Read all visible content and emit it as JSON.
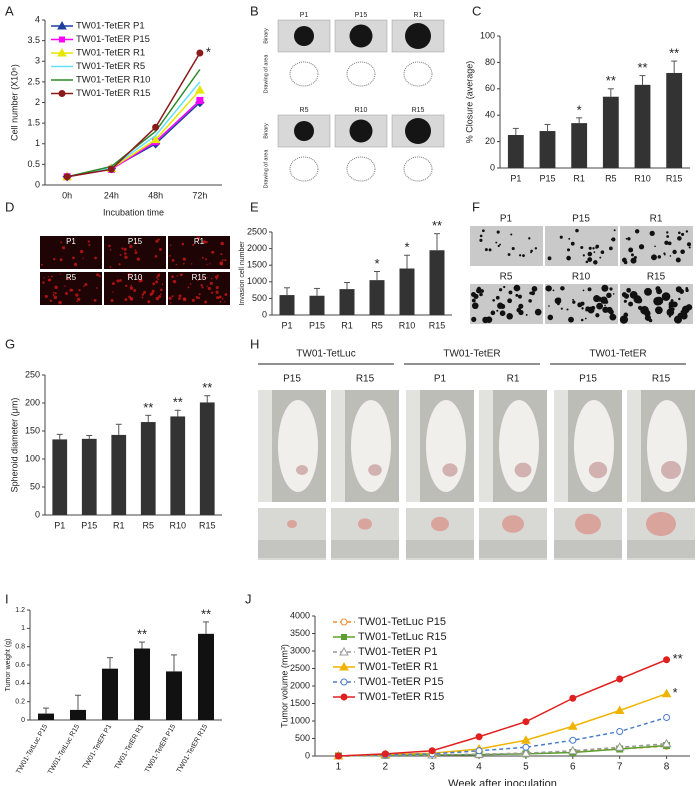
{
  "chart_data": [
    {
      "panel": "A",
      "type": "line",
      "y_label": "Cell number (X10⁶)",
      "x_label": "Incubation time",
      "categories": [
        "0h",
        "24h",
        "48h",
        "72h"
      ],
      "ylim": [
        0,
        4
      ],
      "yticks": [
        0,
        0.5,
        1,
        1.5,
        2,
        2.5,
        3,
        3.5,
        4
      ],
      "legend": "upper left",
      "series": [
        {
          "name": "TW01-TetER P1",
          "color": "#1f3fa0",
          "marker": "diamond",
          "open": false,
          "dash": false,
          "values": [
            0.2,
            0.4,
            1.0,
            2.0
          ]
        },
        {
          "name": "TW01-TetER P15",
          "color": "#ff00ff",
          "marker": "square",
          "open": false,
          "dash": false,
          "values": [
            0.2,
            0.38,
            1.05,
            2.05
          ]
        },
        {
          "name": "TW01-TetER R1",
          "color": "#e6e600",
          "marker": "triangle",
          "open": false,
          "dash": false,
          "values": [
            0.2,
            0.4,
            1.1,
            2.3
          ]
        },
        {
          "name": "TW01-TetER R5",
          "color": "#66e0ff",
          "marker": "none",
          "open": false,
          "dash": false,
          "values": [
            0.2,
            0.42,
            1.2,
            2.5
          ]
        },
        {
          "name": "TW01-TetER R10",
          "color": "#2a8a2a",
          "marker": "none",
          "open": false,
          "dash": false,
          "values": [
            0.2,
            0.45,
            1.3,
            2.8
          ]
        },
        {
          "name": "TW01-TetER R15",
          "color": "#8b1a1a",
          "marker": "circle",
          "open": false,
          "dash": false,
          "values": [
            0.2,
            0.38,
            1.4,
            3.2
          ]
        }
      ],
      "annotations": [
        {
          "series": 5,
          "index": 3,
          "text": "*"
        }
      ]
    },
    {
      "panel": "C",
      "type": "bar",
      "y_label": "% Closure (average)",
      "color": "#333333",
      "categories": [
        "P1",
        "P15",
        "R1",
        "R5",
        "R10",
        "R15"
      ],
      "values": [
        25,
        28,
        34,
        54,
        63,
        72
      ],
      "errors": [
        5,
        5,
        4,
        6,
        7,
        9
      ],
      "ylim": [
        0,
        100
      ],
      "yticks": [
        0,
        20,
        40,
        60,
        80,
        100
      ],
      "annotations": [
        {
          "index": 2,
          "text": "*"
        },
        {
          "index": 3,
          "text": "**"
        },
        {
          "index": 4,
          "text": "**"
        },
        {
          "index": 5,
          "text": "**"
        }
      ]
    },
    {
      "panel": "E",
      "type": "bar",
      "y_label": "Invasion cell number",
      "color": "#333333",
      "categories": [
        "P1",
        "P15",
        "R1",
        "R5",
        "R10",
        "R15"
      ],
      "values": [
        600,
        580,
        780,
        1050,
        1400,
        1950
      ],
      "errors": [
        220,
        220,
        200,
        260,
        400,
        500
      ],
      "ylim": [
        0,
        2500
      ],
      "yticks": [
        0,
        500,
        1000,
        1500,
        2000,
        2500
      ],
      "annotations": [
        {
          "index": 3,
          "text": "*"
        },
        {
          "index": 4,
          "text": "*"
        },
        {
          "index": 5,
          "text": "**"
        }
      ]
    },
    {
      "panel": "G",
      "type": "bar",
      "y_label": "Spheroid diameter (μm)",
      "color": "#333333",
      "categories": [
        "P1",
        "P15",
        "R1",
        "R5",
        "R10",
        "R15"
      ],
      "values": [
        135,
        136,
        143,
        166,
        176,
        201
      ],
      "errors": [
        9,
        6,
        19,
        12,
        11,
        12
      ],
      "ylim": [
        0,
        250
      ],
      "yticks": [
        0,
        50,
        100,
        150,
        200,
        250
      ],
      "annotations": [
        {
          "index": 3,
          "text": "**"
        },
        {
          "index": 4,
          "text": "**"
        },
        {
          "index": 5,
          "text": "**"
        }
      ]
    },
    {
      "panel": "I",
      "type": "bar",
      "y_label": "Tumor weight (g)",
      "color": "#111111",
      "categories": [
        "TW01-TetLuc P15",
        "TW01-TetLuc R15",
        "TW01-TetER P1",
        "TW01-TetER R1",
        "TW01-TetER P15",
        "TW01-TetER R15"
      ],
      "values": [
        0.07,
        0.11,
        0.56,
        0.78,
        0.53,
        0.94
      ],
      "errors": [
        0.06,
        0.16,
        0.12,
        0.07,
        0.18,
        0.13
      ],
      "ylim": [
        0,
        1.2
      ],
      "yticks": [
        0,
        0.2,
        0.4,
        0.6,
        0.8,
        1,
        1.2
      ],
      "annotations": [
        {
          "index": 3,
          "text": "**"
        },
        {
          "index": 5,
          "text": "**"
        }
      ]
    },
    {
      "panel": "J",
      "type": "line",
      "y_label": "Tumor volume (mm³)",
      "x_label": "Week after inoculation",
      "x": [
        1,
        2,
        3,
        4,
        5,
        6,
        7,
        8
      ],
      "xlim": [
        0.5,
        8.5
      ],
      "xticks": [
        1,
        2,
        3,
        4,
        5,
        6,
        7,
        8
      ],
      "ylim": [
        0,
        4000
      ],
      "yticks": [
        0,
        500,
        1000,
        1500,
        2000,
        2500,
        3000,
        3500,
        4000
      ],
      "legend": "upper left",
      "series": [
        {
          "name": "TW01-TetLuc P15",
          "color": "#f08a30",
          "marker": "circle",
          "open": true,
          "dash": true,
          "values": [
            0,
            20,
            30,
            50,
            80,
            120,
            200,
            280
          ]
        },
        {
          "name": "TW01-TetLuc R15",
          "color": "#5aa02c",
          "marker": "square",
          "open": false,
          "dash": false,
          "values": [
            0,
            20,
            30,
            40,
            60,
            100,
            200,
            300
          ]
        },
        {
          "name": "TW01-TetER P1",
          "color": "#999999",
          "marker": "triangle",
          "open": true,
          "dash": true,
          "values": [
            0,
            20,
            30,
            50,
            80,
            150,
            250,
            350
          ]
        },
        {
          "name": "TW01-TetER R1",
          "color": "#f0b400",
          "marker": "triangle",
          "open": false,
          "dash": false,
          "values": [
            0,
            40,
            80,
            200,
            450,
            850,
            1300,
            1780
          ]
        },
        {
          "name": "TW01-TetER P15",
          "color": "#4a7cc8",
          "marker": "circle",
          "open": true,
          "dash": true,
          "values": [
            0,
            30,
            60,
            150,
            250,
            450,
            700,
            1100
          ]
        },
        {
          "name": "TW01-TetER R15",
          "color": "#e02020",
          "marker": "circle",
          "open": false,
          "dash": false,
          "values": [
            0,
            60,
            150,
            550,
            980,
            1650,
            2200,
            2750
          ]
        }
      ],
      "annotations": [
        {
          "series": 5,
          "index": 7,
          "text": "**"
        },
        {
          "series": 3,
          "index": 7,
          "text": "*"
        }
      ]
    }
  ],
  "image_panels": [
    {
      "panel": "B",
      "labels": [
        "P1",
        "P15",
        "R1",
        "R5",
        "R10",
        "R15"
      ],
      "row_labels": [
        "Binary",
        "Drawing of area",
        "Binary",
        "Drawing of area"
      ]
    },
    {
      "panel": "D",
      "labels": [
        "P1",
        "P15",
        "R1",
        "R5",
        "R10",
        "R15"
      ]
    },
    {
      "panel": "F",
      "labels": [
        "P1",
        "P15",
        "R1",
        "R5",
        "R10",
        "R15"
      ]
    },
    {
      "panel": "H",
      "groups": [
        "TW01-TetLuc",
        "TW01-TetER",
        "TW01-TetER"
      ],
      "labels": [
        "P15",
        "R15",
        "P1",
        "R1",
        "P15",
        "R15"
      ]
    }
  ]
}
